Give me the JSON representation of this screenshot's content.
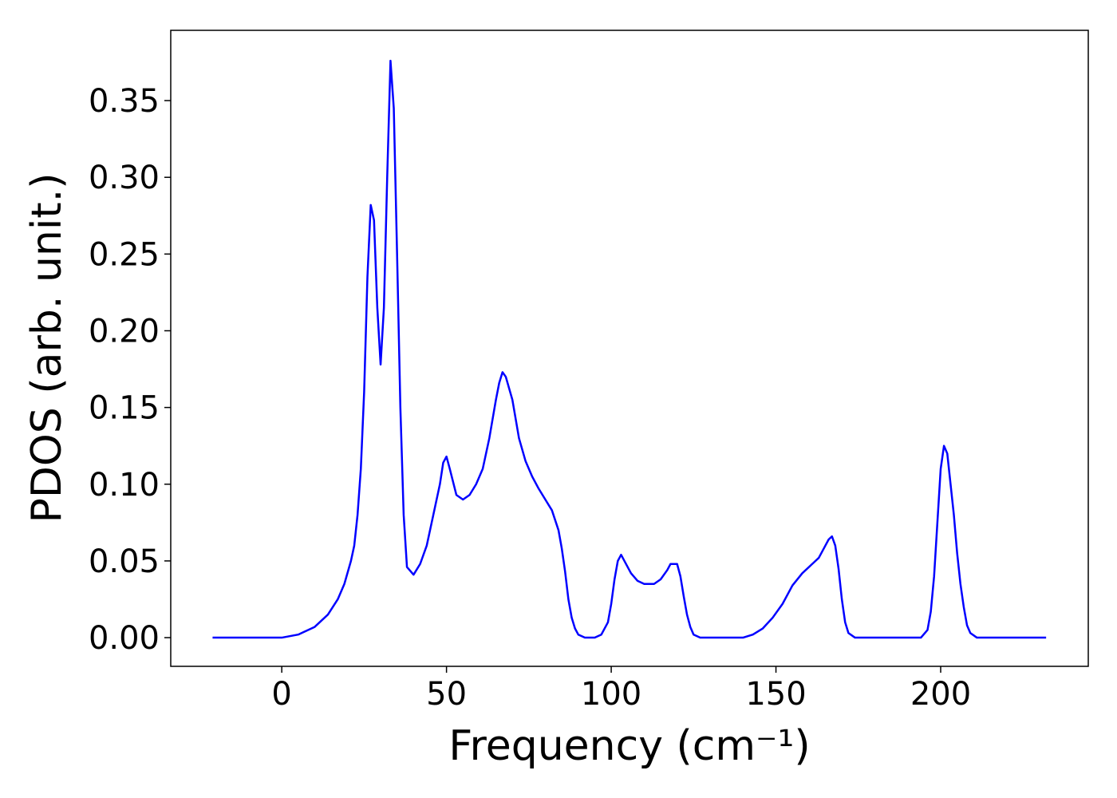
{
  "chart_data": {
    "type": "line",
    "xlabel": "Frequency (cm⁻¹)",
    "ylabel": "PDOS (arb. unit.)",
    "x": [
      -21,
      -10,
      0,
      5,
      10,
      14,
      17,
      19,
      21,
      22,
      23,
      24,
      25,
      26,
      27,
      28,
      29,
      30,
      31,
      32,
      33,
      34,
      35,
      36,
      37,
      38,
      40,
      42,
      44,
      46,
      48,
      49,
      50,
      51,
      53,
      55,
      57,
      59,
      61,
      63,
      65,
      66,
      67,
      68,
      70,
      72,
      74,
      76,
      78,
      80,
      82,
      84,
      85,
      86,
      87,
      88,
      89,
      90,
      92,
      95,
      97,
      99,
      100,
      101,
      102,
      103,
      104,
      106,
      108,
      110,
      113,
      115,
      117,
      118,
      120,
      121,
      122,
      123,
      124,
      125,
      127,
      140,
      143,
      146,
      149,
      152,
      155,
      158,
      161,
      163,
      165,
      166,
      167,
      168,
      169,
      170,
      171,
      172,
      174,
      194,
      196,
      197,
      198,
      199,
      200,
      201,
      202,
      203,
      204,
      205,
      206,
      207,
      208,
      209,
      211,
      232
    ],
    "series": [
      {
        "name": "PDOS",
        "color": "#0000ff",
        "values": [
          0,
          0,
          0,
          0.002,
          0.007,
          0.015,
          0.025,
          0.035,
          0.05,
          0.06,
          0.08,
          0.11,
          0.16,
          0.235,
          0.282,
          0.272,
          0.215,
          0.178,
          0.215,
          0.3,
          0.376,
          0.345,
          0.25,
          0.15,
          0.08,
          0.046,
          0.041,
          0.048,
          0.06,
          0.08,
          0.1,
          0.114,
          0.118,
          0.11,
          0.093,
          0.09,
          0.093,
          0.1,
          0.11,
          0.13,
          0.155,
          0.166,
          0.173,
          0.17,
          0.155,
          0.13,
          0.115,
          0.105,
          0.097,
          0.09,
          0.083,
          0.07,
          0.058,
          0.043,
          0.025,
          0.013,
          0.006,
          0.002,
          0,
          0,
          0.002,
          0.01,
          0.022,
          0.038,
          0.05,
          0.054,
          0.05,
          0.042,
          0.037,
          0.035,
          0.035,
          0.038,
          0.044,
          0.048,
          0.048,
          0.04,
          0.027,
          0.015,
          0.007,
          0.002,
          0,
          0,
          0.002,
          0.006,
          0.013,
          0.022,
          0.034,
          0.042,
          0.048,
          0.052,
          0.06,
          0.064,
          0.066,
          0.06,
          0.045,
          0.025,
          0.01,
          0.003,
          0,
          0,
          0.005,
          0.017,
          0.04,
          0.075,
          0.11,
          0.125,
          0.12,
          0.1,
          0.08,
          0.055,
          0.035,
          0.02,
          0.008,
          0.003,
          0,
          0
        ]
      }
    ],
    "xlim": [
      -33.7,
      244.8
    ],
    "xticks": [
      0,
      50,
      100,
      150,
      200
    ],
    "ylim": [
      -0.0187,
      0.3958
    ],
    "yticks": [
      {
        "value": 0,
        "label": "0.00"
      },
      {
        "value": 0.05,
        "label": "0.05"
      },
      {
        "value": 0.1,
        "label": "0.10"
      },
      {
        "value": 0.15,
        "label": "0.15"
      },
      {
        "value": 0.2,
        "label": "0.20"
      },
      {
        "value": 0.25,
        "label": "0.25"
      },
      {
        "value": 0.3,
        "label": "0.30"
      },
      {
        "value": 0.35,
        "label": "0.35"
      }
    ],
    "grid": false
  }
}
